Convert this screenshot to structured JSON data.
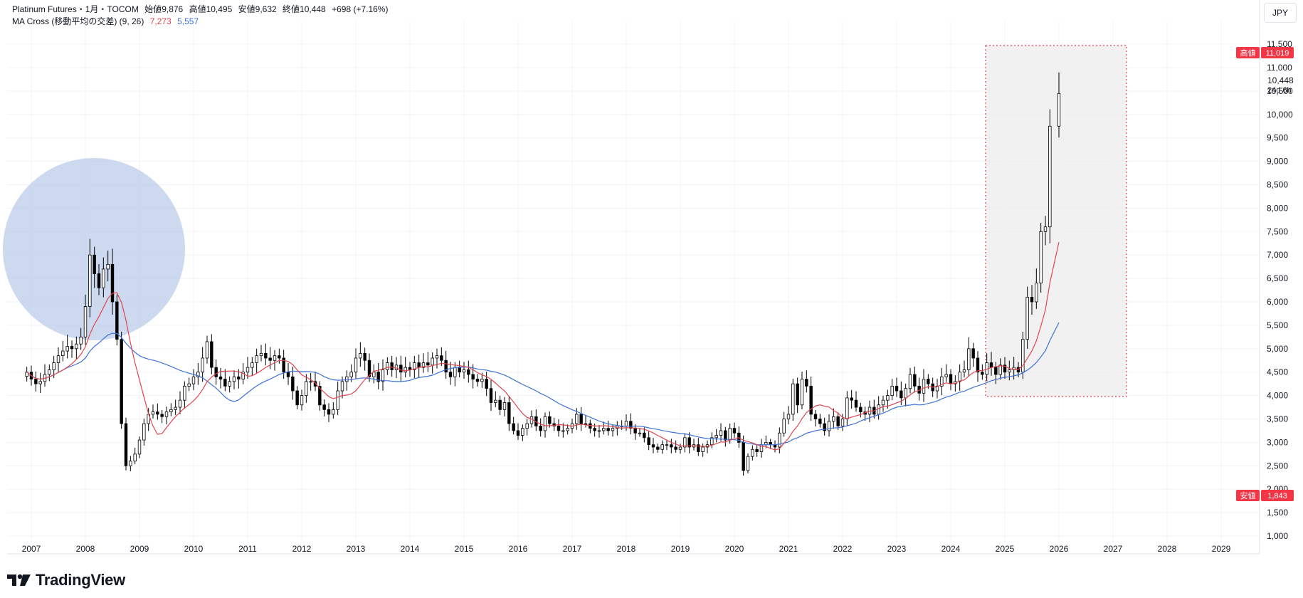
{
  "legend": {
    "symbol": "Platinum Futures・1月・TOCOM",
    "open_label": "始値",
    "open": "9,876",
    "high_label": "高値",
    "high": "10,495",
    "low_label": "安値",
    "low": "9,632",
    "close_label": "終値",
    "close": "10,448",
    "change": "+698 (+7.16%)",
    "ma_name": "MA Cross (移動平均の交差) (9, 26)",
    "ma_fast": "7,273",
    "ma_slow": "5,557"
  },
  "currency": "JPY",
  "price_badges": {
    "high_label": "高値",
    "high_value": "11,019",
    "low_label": "安値",
    "low_value": "1,843",
    "last_value": "10,448",
    "countdown": "24d 6h"
  },
  "brand": {
    "name": "TradingView"
  },
  "colors": {
    "up": "#ffffff",
    "down": "#000000",
    "wick": "#000000",
    "ma_fast": "#e0464e",
    "ma_slow": "#3f72d8",
    "badge": "#f23645",
    "circle": "#b2c4e6",
    "box_fill": "#ebebeb",
    "box_border": "#e0464e",
    "grid": "#f0f3fa"
  },
  "chart_data": {
    "type": "candlestick",
    "interval": "1M",
    "y_ticks": [
      "1,000",
      "1,500",
      "2,000",
      "2,500",
      "3,000",
      "3,500",
      "4,000",
      "4,500",
      "5,000",
      "5,500",
      "6,000",
      "6,500",
      "7,000",
      "7,500",
      "8,000",
      "8,500",
      "9,000",
      "9,500",
      "10,000",
      "10,500",
      "11,000",
      "11,500"
    ],
    "x_ticks": [
      "2007",
      "2008",
      "2009",
      "2010",
      "2011",
      "2012",
      "2013",
      "2014",
      "2015",
      "2016",
      "2017",
      "2018",
      "2019",
      "2020",
      "2021",
      "2022",
      "2023",
      "2024",
      "2025",
      "2026",
      "2027",
      "2028",
      "2029"
    ],
    "ylim": [
      1000,
      11500
    ],
    "all_time_high": 11019,
    "all_time_low": 1843,
    "series_closes": [
      {
        "t": "2006-12",
        "c": 4500
      },
      {
        "t": "2007-01",
        "c": 4350
      },
      {
        "t": "2007-02",
        "c": 4250
      },
      {
        "t": "2007-03",
        "c": 4300
      },
      {
        "t": "2007-04",
        "c": 4450
      },
      {
        "t": "2007-05",
        "c": 4550
      },
      {
        "t": "2007-06",
        "c": 4700
      },
      {
        "t": "2007-07",
        "c": 4850
      },
      {
        "t": "2007-08",
        "c": 4950
      },
      {
        "t": "2007-09",
        "c": 5050
      },
      {
        "t": "2007-10",
        "c": 5000
      },
      {
        "t": "2007-11",
        "c": 5100
      },
      {
        "t": "2007-12",
        "c": 5250
      },
      {
        "t": "2008-01",
        "c": 5900
      },
      {
        "t": "2008-02",
        "c": 7000
      },
      {
        "t": "2008-03",
        "c": 6600
      },
      {
        "t": "2008-04",
        "c": 6300
      },
      {
        "t": "2008-05",
        "c": 6700
      },
      {
        "t": "2008-06",
        "c": 6800
      },
      {
        "t": "2008-07",
        "c": 6000
      },
      {
        "t": "2008-08",
        "c": 5200
      },
      {
        "t": "2008-09",
        "c": 3400
      },
      {
        "t": "2008-10",
        "c": 2500
      },
      {
        "t": "2008-11",
        "c": 2600
      },
      {
        "t": "2008-12",
        "c": 2750
      },
      {
        "t": "2009-01",
        "c": 3050
      },
      {
        "t": "2009-02",
        "c": 3400
      },
      {
        "t": "2009-03",
        "c": 3600
      },
      {
        "t": "2009-04",
        "c": 3650
      },
      {
        "t": "2009-05",
        "c": 3600
      },
      {
        "t": "2009-06",
        "c": 3550
      },
      {
        "t": "2009-07",
        "c": 3650
      },
      {
        "t": "2009-08",
        "c": 3700
      },
      {
        "t": "2009-09",
        "c": 3750
      },
      {
        "t": "2009-10",
        "c": 3900
      },
      {
        "t": "2009-11",
        "c": 4200
      },
      {
        "t": "2009-12",
        "c": 4250
      },
      {
        "t": "2010-01",
        "c": 4400
      },
      {
        "t": "2010-02",
        "c": 4500
      },
      {
        "t": "2010-03",
        "c": 4800
      },
      {
        "t": "2010-04",
        "c": 5150
      },
      {
        "t": "2010-05",
        "c": 4600
      },
      {
        "t": "2010-06",
        "c": 4400
      },
      {
        "t": "2010-07",
        "c": 4350
      },
      {
        "t": "2010-08",
        "c": 4200
      },
      {
        "t": "2010-09",
        "c": 4300
      },
      {
        "t": "2010-10",
        "c": 4400
      },
      {
        "t": "2010-11",
        "c": 4350
      },
      {
        "t": "2010-12",
        "c": 4500
      },
      {
        "t": "2011-01",
        "c": 4600
      },
      {
        "t": "2011-02",
        "c": 4700
      },
      {
        "t": "2011-03",
        "c": 4850
      },
      {
        "t": "2011-04",
        "c": 4900
      },
      {
        "t": "2011-05",
        "c": 4800
      },
      {
        "t": "2011-06",
        "c": 4750
      },
      {
        "t": "2011-07",
        "c": 4850
      },
      {
        "t": "2011-08",
        "c": 4800
      },
      {
        "t": "2011-09",
        "c": 4500
      },
      {
        "t": "2011-10",
        "c": 4400
      },
      {
        "t": "2011-11",
        "c": 4100
      },
      {
        "t": "2011-12",
        "c": 3800
      },
      {
        "t": "2012-01",
        "c": 4000
      },
      {
        "t": "2012-02",
        "c": 4300
      },
      {
        "t": "2012-03",
        "c": 4300
      },
      {
        "t": "2012-04",
        "c": 4200
      },
      {
        "t": "2012-05",
        "c": 3800
      },
      {
        "t": "2012-06",
        "c": 3700
      },
      {
        "t": "2012-07",
        "c": 3600
      },
      {
        "t": "2012-08",
        "c": 3700
      },
      {
        "t": "2012-09",
        "c": 4100
      },
      {
        "t": "2012-10",
        "c": 4300
      },
      {
        "t": "2012-11",
        "c": 4400
      },
      {
        "t": "2012-12",
        "c": 4500
      },
      {
        "t": "2013-01",
        "c": 4800
      },
      {
        "t": "2013-02",
        "c": 4900
      },
      {
        "t": "2013-03",
        "c": 4750
      },
      {
        "t": "2013-04",
        "c": 4400
      },
      {
        "t": "2013-05",
        "c": 4500
      },
      {
        "t": "2013-06",
        "c": 4300
      },
      {
        "t": "2013-07",
        "c": 4550
      },
      {
        "t": "2013-08",
        "c": 4700
      },
      {
        "t": "2013-09",
        "c": 4550
      },
      {
        "t": "2013-10",
        "c": 4650
      },
      {
        "t": "2013-11",
        "c": 4500
      },
      {
        "t": "2013-12",
        "c": 4600
      },
      {
        "t": "2014-01",
        "c": 4550
      },
      {
        "t": "2014-02",
        "c": 4700
      },
      {
        "t": "2014-03",
        "c": 4600
      },
      {
        "t": "2014-04",
        "c": 4700
      },
      {
        "t": "2014-05",
        "c": 4650
      },
      {
        "t": "2014-06",
        "c": 4800
      },
      {
        "t": "2014-07",
        "c": 4850
      },
      {
        "t": "2014-08",
        "c": 4750
      },
      {
        "t": "2014-09",
        "c": 4500
      },
      {
        "t": "2014-10",
        "c": 4400
      },
      {
        "t": "2014-11",
        "c": 4600
      },
      {
        "t": "2014-12",
        "c": 4500
      },
      {
        "t": "2015-01",
        "c": 4550
      },
      {
        "t": "2015-02",
        "c": 4450
      },
      {
        "t": "2015-03",
        "c": 4350
      },
      {
        "t": "2015-04",
        "c": 4300
      },
      {
        "t": "2015-05",
        "c": 4350
      },
      {
        "t": "2015-06",
        "c": 4150
      },
      {
        "t": "2015-07",
        "c": 3850
      },
      {
        "t": "2015-08",
        "c": 3900
      },
      {
        "t": "2015-09",
        "c": 3700
      },
      {
        "t": "2015-10",
        "c": 3850
      },
      {
        "t": "2015-11",
        "c": 3400
      },
      {
        "t": "2015-12",
        "c": 3250
      },
      {
        "t": "2016-01",
        "c": 3150
      },
      {
        "t": "2016-02",
        "c": 3300
      },
      {
        "t": "2016-03",
        "c": 3400
      },
      {
        "t": "2016-04",
        "c": 3550
      },
      {
        "t": "2016-05",
        "c": 3350
      },
      {
        "t": "2016-06",
        "c": 3250
      },
      {
        "t": "2016-07",
        "c": 3550
      },
      {
        "t": "2016-08",
        "c": 3400
      },
      {
        "t": "2016-09",
        "c": 3350
      },
      {
        "t": "2016-10",
        "c": 3250
      },
      {
        "t": "2016-11",
        "c": 3250
      },
      {
        "t": "2016-12",
        "c": 3300
      },
      {
        "t": "2017-01",
        "c": 3400
      },
      {
        "t": "2017-02",
        "c": 3600
      },
      {
        "t": "2017-03",
        "c": 3400
      },
      {
        "t": "2017-04",
        "c": 3400
      },
      {
        "t": "2017-05",
        "c": 3300
      },
      {
        "t": "2017-06",
        "c": 3250
      },
      {
        "t": "2017-07",
        "c": 3250
      },
      {
        "t": "2017-08",
        "c": 3300
      },
      {
        "t": "2017-09",
        "c": 3250
      },
      {
        "t": "2017-10",
        "c": 3300
      },
      {
        "t": "2017-11",
        "c": 3350
      },
      {
        "t": "2017-12",
        "c": 3350
      },
      {
        "t": "2018-01",
        "c": 3450
      },
      {
        "t": "2018-02",
        "c": 3300
      },
      {
        "t": "2018-03",
        "c": 3200
      },
      {
        "t": "2018-04",
        "c": 3200
      },
      {
        "t": "2018-05",
        "c": 3100
      },
      {
        "t": "2018-06",
        "c": 2950
      },
      {
        "t": "2018-07",
        "c": 2900
      },
      {
        "t": "2018-08",
        "c": 2850
      },
      {
        "t": "2018-09",
        "c": 2950
      },
      {
        "t": "2018-10",
        "c": 2950
      },
      {
        "t": "2018-11",
        "c": 2900
      },
      {
        "t": "2018-12",
        "c": 2850
      },
      {
        "t": "2019-01",
        "c": 2900
      },
      {
        "t": "2019-02",
        "c": 3100
      },
      {
        "t": "2019-03",
        "c": 2900
      },
      {
        "t": "2019-04",
        "c": 2950
      },
      {
        "t": "2019-05",
        "c": 2800
      },
      {
        "t": "2019-06",
        "c": 2900
      },
      {
        "t": "2019-07",
        "c": 2950
      },
      {
        "t": "2019-08",
        "c": 3100
      },
      {
        "t": "2019-09",
        "c": 3150
      },
      {
        "t": "2019-10",
        "c": 3250
      },
      {
        "t": "2019-11",
        "c": 3050
      },
      {
        "t": "2019-12",
        "c": 3300
      },
      {
        "t": "2020-01",
        "c": 3200
      },
      {
        "t": "2020-02",
        "c": 3000
      },
      {
        "t": "2020-03",
        "c": 2400
      },
      {
        "t": "2020-04",
        "c": 2700
      },
      {
        "t": "2020-05",
        "c": 2850
      },
      {
        "t": "2020-06",
        "c": 2800
      },
      {
        "t": "2020-07",
        "c": 2950
      },
      {
        "t": "2020-08",
        "c": 3000
      },
      {
        "t": "2020-09",
        "c": 2950
      },
      {
        "t": "2020-10",
        "c": 2900
      },
      {
        "t": "2020-11",
        "c": 3200
      },
      {
        "t": "2020-12",
        "c": 3500
      },
      {
        "t": "2021-01",
        "c": 3600
      },
      {
        "t": "2021-02",
        "c": 4250
      },
      {
        "t": "2021-03",
        "c": 3800
      },
      {
        "t": "2021-04",
        "c": 4350
      },
      {
        "t": "2021-05",
        "c": 4200
      },
      {
        "t": "2021-06",
        "c": 3600
      },
      {
        "t": "2021-07",
        "c": 3500
      },
      {
        "t": "2021-08",
        "c": 3400
      },
      {
        "t": "2021-09",
        "c": 3250
      },
      {
        "t": "2021-10",
        "c": 3450
      },
      {
        "t": "2021-11",
        "c": 3550
      },
      {
        "t": "2021-12",
        "c": 3350
      },
      {
        "t": "2022-01",
        "c": 3500
      },
      {
        "t": "2022-02",
        "c": 3950
      },
      {
        "t": "2022-03",
        "c": 3900
      },
      {
        "t": "2022-04",
        "c": 3750
      },
      {
        "t": "2022-05",
        "c": 3650
      },
      {
        "t": "2022-06",
        "c": 3600
      },
      {
        "t": "2022-07",
        "c": 3750
      },
      {
        "t": "2022-08",
        "c": 3600
      },
      {
        "t": "2022-09",
        "c": 3800
      },
      {
        "t": "2022-10",
        "c": 3900
      },
      {
        "t": "2022-11",
        "c": 4000
      },
      {
        "t": "2022-12",
        "c": 4200
      },
      {
        "t": "2023-01",
        "c": 4100
      },
      {
        "t": "2023-02",
        "c": 3950
      },
      {
        "t": "2023-03",
        "c": 4150
      },
      {
        "t": "2023-04",
        "c": 4450
      },
      {
        "t": "2023-05",
        "c": 4200
      },
      {
        "t": "2023-06",
        "c": 4050
      },
      {
        "t": "2023-07",
        "c": 4350
      },
      {
        "t": "2023-08",
        "c": 4250
      },
      {
        "t": "2023-09",
        "c": 4100
      },
      {
        "t": "2023-10",
        "c": 4200
      },
      {
        "t": "2023-11",
        "c": 4400
      },
      {
        "t": "2023-12",
        "c": 4450
      },
      {
        "t": "2024-01",
        "c": 4250
      },
      {
        "t": "2024-02",
        "c": 4300
      },
      {
        "t": "2024-03",
        "c": 4500
      },
      {
        "t": "2024-04",
        "c": 4550
      },
      {
        "t": "2024-05",
        "c": 5000
      },
      {
        "t": "2024-06",
        "c": 4800
      },
      {
        "t": "2024-07",
        "c": 4500
      },
      {
        "t": "2024-08",
        "c": 4450
      },
      {
        "t": "2024-09",
        "c": 4700
      },
      {
        "t": "2024-10",
        "c": 4600
      },
      {
        "t": "2024-11",
        "c": 4450
      },
      {
        "t": "2024-12",
        "c": 4650
      },
      {
        "t": "2025-01",
        "c": 4500
      },
      {
        "t": "2025-02",
        "c": 4550
      },
      {
        "t": "2025-03",
        "c": 4600
      },
      {
        "t": "2025-04",
        "c": 4500
      },
      {
        "t": "2025-05",
        "c": 5200
      },
      {
        "t": "2025-06",
        "c": 6100
      },
      {
        "t": "2025-07",
        "c": 6000
      },
      {
        "t": "2025-08",
        "c": 6400
      },
      {
        "t": "2025-09",
        "c": 7500
      },
      {
        "t": "2025-10",
        "c": 7600
      },
      {
        "t": "2025-11",
        "c": 9750
      },
      {
        "t": "2026-01",
        "c": 10448
      }
    ],
    "ma_fast_last": 7273,
    "ma_slow_last": 5557
  }
}
